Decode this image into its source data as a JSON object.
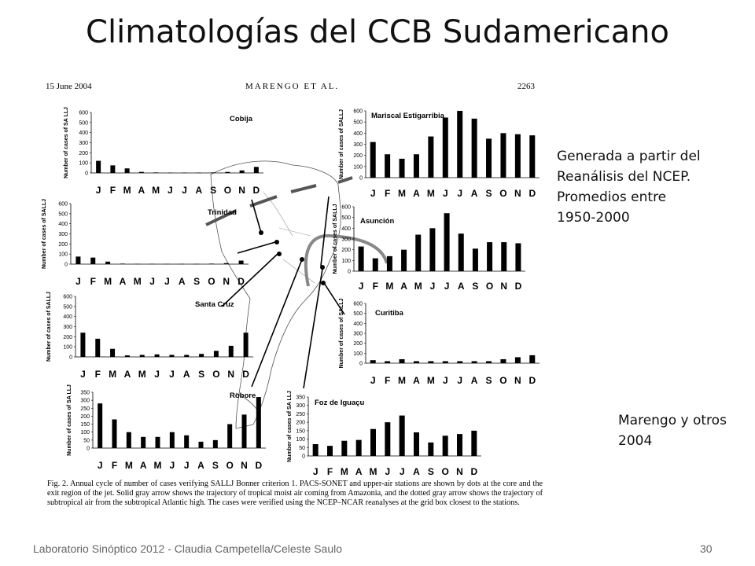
{
  "slide": {
    "title": "Climatologías del CCB Sudamericano",
    "note_lines": [
      "Generada a partir del",
      "Reanálisis del NCEP.",
      "Promedios entre",
      "1950-2000"
    ],
    "credit_lines": [
      "Marengo y otros",
      "2004"
    ],
    "footer": "Laboratorio Sinóptico 2012 - Claudia Campetella/Celeste Saulo",
    "page_number": "30"
  },
  "paper": {
    "date": "15 June 2004",
    "authors": "MARENGO ET AL.",
    "page": "2263",
    "caption": "Fig. 2. Annual cycle of number of cases verifying SALLJ Bonner criterion 1. PACS-SONET and upper-air stations are shown by dots at the core and the exit region of the jet. Solid gray arrow shows the trajectory of tropical moist air coming from Amazonia, and the dotted gray arrow shows the trajectory of subtropical air from the subtropical Atlantic high. The cases were verified using the NCEP–NCAR reanalyses at the grid box closest to the stations."
  },
  "chart_data": [
    {
      "type": "bar",
      "title": "Cobija",
      "ylabel": "Number of cases of SA LLJ",
      "categories": [
        "J",
        "F",
        "M",
        "A",
        "M",
        "J",
        "J",
        "A",
        "S",
        "O",
        "N",
        "D"
      ],
      "yticks": [
        "0",
        "100",
        "200",
        "300",
        "400",
        "500",
        "600"
      ],
      "ylim": [
        0,
        600
      ],
      "values": [
        120,
        75,
        45,
        10,
        5,
        3,
        3,
        3,
        5,
        10,
        25,
        60
      ]
    },
    {
      "type": "bar",
      "title": "Trinidad",
      "ylabel": "Number of cases of SALLJ",
      "categories": [
        "J",
        "F",
        "M",
        "A",
        "M",
        "J",
        "J",
        "A",
        "S",
        "O",
        "N",
        "D"
      ],
      "yticks": [
        "0",
        "100",
        "200",
        "300",
        "400",
        "500",
        "600"
      ],
      "ylim": [
        0,
        600
      ],
      "values": [
        75,
        65,
        25,
        5,
        3,
        3,
        3,
        3,
        3,
        5,
        10,
        35
      ]
    },
    {
      "type": "bar",
      "title": "Santa Cruz",
      "ylabel": "Number of cases of SALLJ",
      "categories": [
        "J",
        "F",
        "M",
        "A",
        "M",
        "J",
        "J",
        "A",
        "S",
        "O",
        "N",
        "D"
      ],
      "yticks": [
        "0",
        "100",
        "200",
        "300",
        "400",
        "500",
        "600"
      ],
      "ylim": [
        0,
        600
      ],
      "values": [
        240,
        180,
        80,
        15,
        20,
        25,
        20,
        20,
        30,
        60,
        110,
        240
      ]
    },
    {
      "type": "bar",
      "title": "Robore",
      "ylabel": "Number of cases of SA LLJ",
      "categories": [
        "J",
        "F",
        "M",
        "A",
        "M",
        "J",
        "J",
        "A",
        "S",
        "O",
        "N",
        "D"
      ],
      "yticks": [
        "0",
        "50",
        "100",
        "150",
        "200",
        "250",
        "300",
        "350"
      ],
      "ylim": [
        0,
        350
      ],
      "values": [
        280,
        180,
        100,
        70,
        70,
        100,
        80,
        40,
        50,
        150,
        210,
        320
      ]
    },
    {
      "type": "bar",
      "title": "Mariscal Estigarribia",
      "ylabel": "Number of cases of SALLJ",
      "categories": [
        "J",
        "F",
        "M",
        "A",
        "M",
        "J",
        "J",
        "A",
        "S",
        "O",
        "N",
        "D"
      ],
      "yticks": [
        "0",
        "100",
        "200",
        "300",
        "400",
        "500",
        "600"
      ],
      "ylim": [
        0,
        600
      ],
      "values": [
        320,
        210,
        170,
        210,
        370,
        540,
        600,
        530,
        350,
        400,
        390,
        380
      ]
    },
    {
      "type": "bar",
      "title": "Asunción",
      "ylabel": "Number of cases of SALLJ",
      "categories": [
        "J",
        "F",
        "M",
        "A",
        "M",
        "J",
        "J",
        "A",
        "S",
        "O",
        "N",
        "D"
      ],
      "yticks": [
        "0",
        "100",
        "200",
        "300",
        "400",
        "500",
        "600"
      ],
      "ylim": [
        0,
        600
      ],
      "values": [
        230,
        120,
        140,
        200,
        340,
        400,
        540,
        350,
        210,
        270,
        270,
        260
      ]
    },
    {
      "type": "bar",
      "title": "Curitiba",
      "ylabel": "Number of cases of SALLJ",
      "categories": [
        "J",
        "F",
        "M",
        "A",
        "M",
        "J",
        "J",
        "A",
        "S",
        "O",
        "N",
        "D"
      ],
      "yticks": [
        "0",
        "100",
        "200",
        "300",
        "400",
        "500",
        "600"
      ],
      "ylim": [
        0,
        600
      ],
      "values": [
        30,
        20,
        40,
        20,
        20,
        20,
        20,
        20,
        20,
        40,
        60,
        80
      ]
    },
    {
      "type": "bar",
      "title": "Foz de Iguaçu",
      "ylabel": "Number of cases of SA LLJ",
      "categories": [
        "J",
        "F",
        "M",
        "A",
        "M",
        "J",
        "J",
        "A",
        "S",
        "O",
        "N",
        "D"
      ],
      "yticks": [
        "0",
        "50",
        "100",
        "150",
        "200",
        "250",
        "300",
        "350"
      ],
      "ylim": [
        0,
        350
      ],
      "values": [
        70,
        60,
        90,
        95,
        160,
        200,
        240,
        140,
        80,
        120,
        130,
        150
      ]
    }
  ]
}
